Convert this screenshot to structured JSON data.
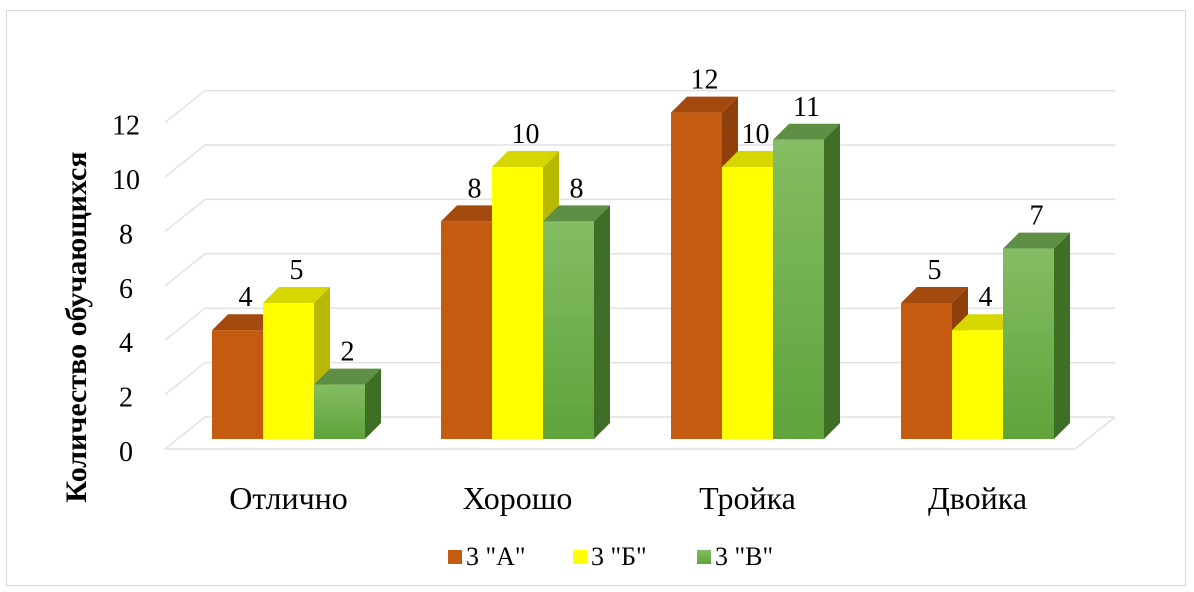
{
  "chart_data": {
    "type": "bar",
    "title": "",
    "xlabel": "",
    "ylabel": "Количество обучающихся",
    "ylim": [
      0,
      12
    ],
    "yticks": [
      0,
      2,
      4,
      6,
      8,
      10,
      12
    ],
    "grid": true,
    "legend_position": "bottom",
    "three_d": true,
    "categories": [
      "Отлично",
      "Хорошо",
      "Тройка",
      "Двойка"
    ],
    "series": [
      {
        "name": "3 \"А\"",
        "values": [
          4,
          8,
          12,
          5
        ],
        "color": "#C55A11"
      },
      {
        "name": "3 \"Б\"",
        "values": [
          5,
          10,
          10,
          4
        ],
        "color": "#FFFF00"
      },
      {
        "name": "3 \"В\"",
        "values": [
          2,
          8,
          11,
          7
        ],
        "color": "#70AD47"
      }
    ]
  }
}
